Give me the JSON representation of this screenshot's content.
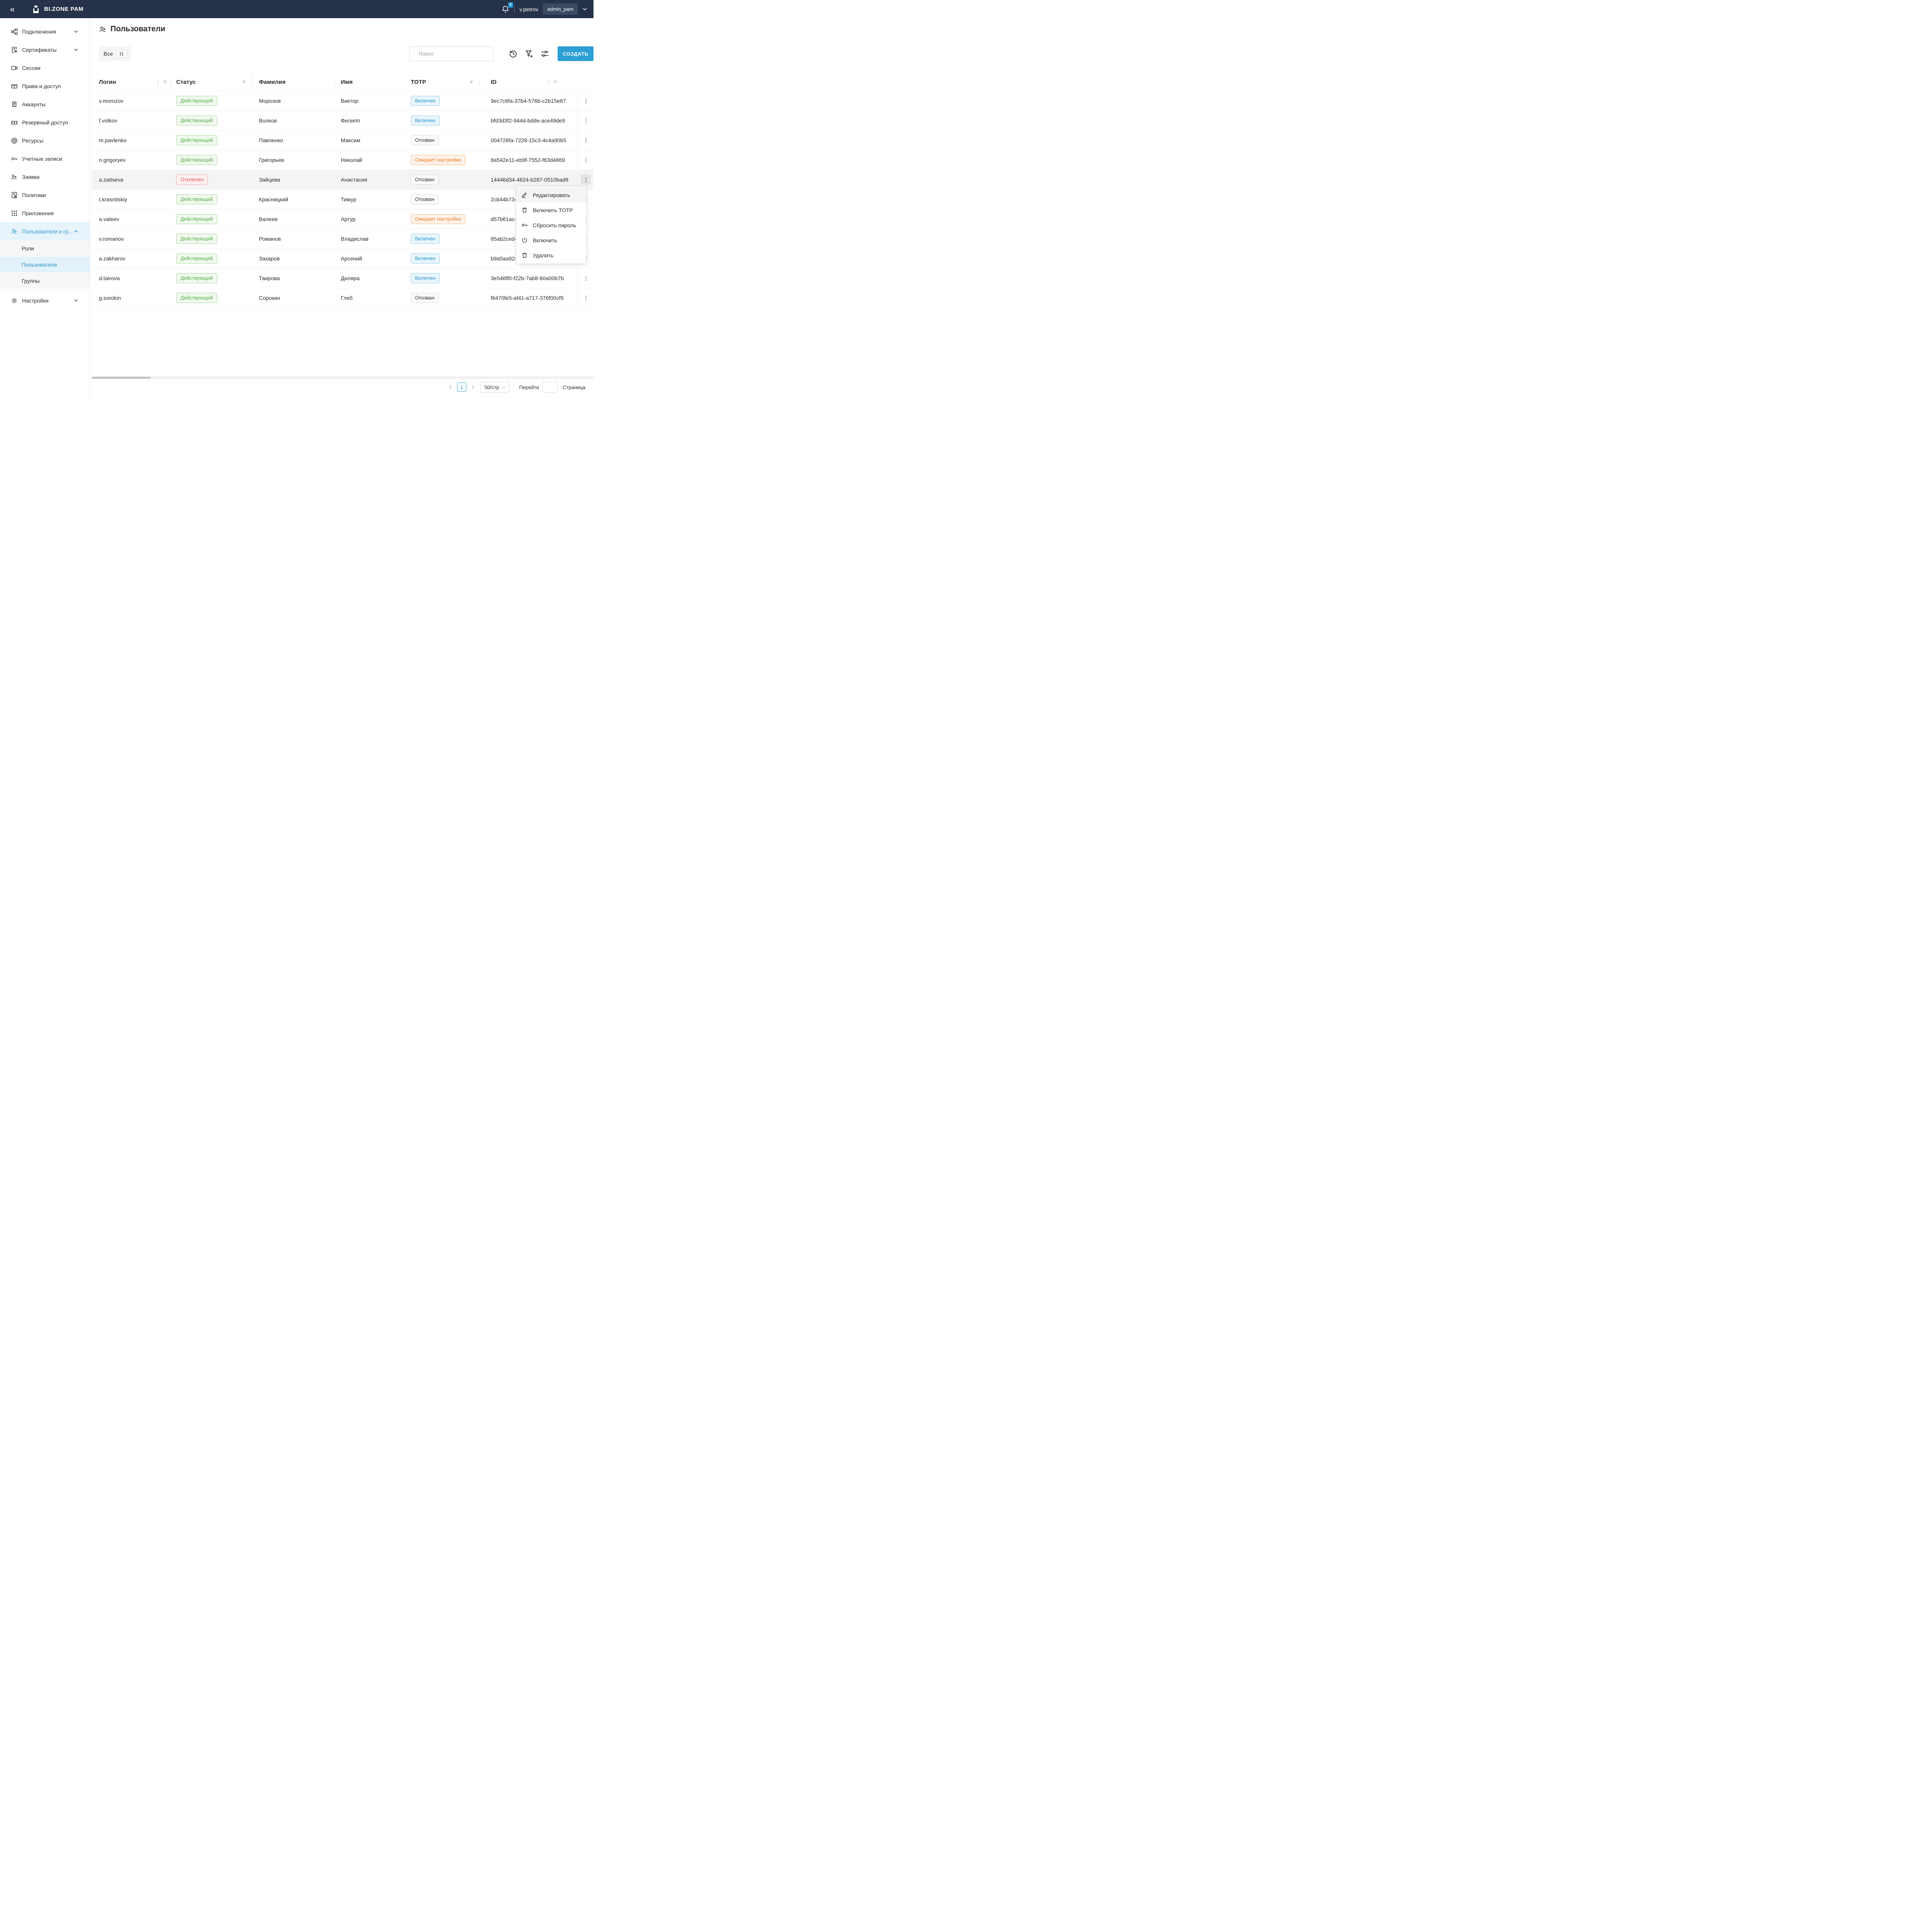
{
  "colors": {
    "topbar_bg": "#263249",
    "accent": "#2b9fd6",
    "accent_text": "#2596cc",
    "sidebar_active_bg": "#e7f4fb",
    "status_green": "#52ae43",
    "status_red": "#e25252",
    "totp_blue": "#2596cc",
    "totp_orange": "#ec7d28"
  },
  "topbar": {
    "brand": "BI.ZONE PAM",
    "notification_count": "2",
    "username": "v.petrov",
    "role": "admin_pam"
  },
  "sidebar": {
    "items": [
      {
        "icon": "connections",
        "label": "Подключения",
        "chevron": "down"
      },
      {
        "icon": "certificates",
        "label": "Сертификаты",
        "chevron": "down"
      },
      {
        "icon": "sessions",
        "label": "Сессии"
      },
      {
        "icon": "rights",
        "label": "Права и доступ"
      },
      {
        "icon": "accounts",
        "label": "Аккаунты"
      },
      {
        "icon": "backup-access",
        "label": "Резервный доступ"
      },
      {
        "icon": "resources",
        "label": "Ресурсы"
      },
      {
        "icon": "credentials",
        "label": "Учетные записи"
      },
      {
        "icon": "requests",
        "label": "Заявки"
      },
      {
        "icon": "policies",
        "label": "Политики"
      },
      {
        "icon": "applications",
        "label": "Приложения"
      },
      {
        "icon": "users-groups",
        "label": "Пользователи и гр...",
        "chevron": "up",
        "active": true
      },
      {
        "label": "Роли",
        "sub": true
      },
      {
        "label": "Пользователи",
        "sub": true,
        "active": true
      },
      {
        "label": "Группы",
        "sub": true
      },
      {
        "icon": "settings",
        "label": "Настройки",
        "chevron": "down",
        "gap": true
      }
    ]
  },
  "page": {
    "title": "Пользователи",
    "filter_chip": {
      "label": "Все",
      "count": "11"
    },
    "search_placeholder": "Поиск",
    "create_button": "СОЗДАТЬ"
  },
  "table": {
    "columns": [
      {
        "label": "Логин",
        "sort": true,
        "filter": true
      },
      {
        "label": "Статус",
        "filter": true
      },
      {
        "label": "Фамилия"
      },
      {
        "label": "Имя"
      },
      {
        "label": "TOTP",
        "filter": true
      },
      {
        "label": "ID",
        "sort": true,
        "filter": true
      }
    ],
    "rows": [
      {
        "login": "v.morozov",
        "status": "Действующий",
        "status_type": "active",
        "last_name": "Морозов",
        "first_name": "Виктор",
        "totp": "Включен",
        "totp_type": "enabled",
        "id": "9ec7c6fa-37b4-576b-c2b15e87"
      },
      {
        "login": "f.volkov",
        "status": "Действующий",
        "status_type": "active",
        "last_name": "Волков",
        "first_name": "Филипп",
        "totp": "Включен",
        "totp_type": "enabled",
        "id": "bfd3d3f2-944d-bdde-ace49de9"
      },
      {
        "login": "m.pavlenko",
        "status": "Действующий",
        "status_type": "active",
        "last_name": "Павленко",
        "first_name": "Максим",
        "totp": "Отозван",
        "totp_type": "revoked",
        "id": "004728fa-7228-15c3-4c4a90b5"
      },
      {
        "login": "n.grigoryev",
        "status": "Действующий",
        "status_type": "active",
        "last_name": "Григорьев",
        "first_name": "Николай",
        "totp": "Ожидает настройки",
        "totp_type": "pending",
        "id": "8a542e11-eb9f-7552-f63d4869"
      },
      {
        "login": "a.zaitseva",
        "status": "Отключен",
        "status_type": "disabled",
        "last_name": "Зайцева",
        "first_name": "Анастасия",
        "totp": "Отозван",
        "totp_type": "revoked",
        "id": "14446d34-4624-b287-0510bad8",
        "selected": true,
        "kebab_active": true
      },
      {
        "login": "t.krasnitskiy",
        "status": "Действующий",
        "status_type": "active",
        "last_name": "Красницкий",
        "first_name": "Тимур",
        "totp": "Отозван",
        "totp_type": "revoked",
        "id": "2cb44b73-"
      },
      {
        "login": "a.valeev",
        "status": "Действующий",
        "status_type": "active",
        "last_name": "Валеев",
        "first_name": "Артур",
        "totp": "Ожидает настройки",
        "totp_type": "pending",
        "id": "d57b61ac-"
      },
      {
        "login": "v.romanov",
        "status": "Действующий",
        "status_type": "active",
        "last_name": "Романов",
        "first_name": "Владислав",
        "totp": "Включен",
        "totp_type": "enabled",
        "id": "85ab2ced-"
      },
      {
        "login": "a.zakharov",
        "status": "Действующий",
        "status_type": "active",
        "last_name": "Захаров",
        "first_name": "Арсений",
        "totp": "Включен",
        "totp_type": "enabled",
        "id": "b9a5aa92-"
      },
      {
        "login": "d.tairova",
        "status": "Действующий",
        "status_type": "active",
        "last_name": "Таирова",
        "first_name": "Диляра",
        "totp": "Включен",
        "totp_type": "enabled",
        "id": "3e546ff0-f22b-7ab8-60a00b7b"
      },
      {
        "login": "g.sorokin",
        "status": "Действующий",
        "status_type": "active",
        "last_name": "Сорокин",
        "first_name": "Глеб",
        "totp": "Отозван",
        "totp_type": "revoked",
        "id": "f6470fe5-af41-a717-376f00cf9"
      }
    ]
  },
  "context_menu": {
    "items": [
      {
        "icon": "pencil",
        "label": "Редактировать",
        "highlighted": true
      },
      {
        "icon": "trash",
        "label": "Включить TOTP"
      },
      {
        "icon": "key",
        "label": "Сбросить пароль"
      },
      {
        "icon": "power",
        "label": "Включить"
      },
      {
        "icon": "trash",
        "label": "Удалить"
      }
    ]
  },
  "pagination": {
    "page": "1",
    "page_size": "50/стр",
    "go_label": "Перейти",
    "go_value": "",
    "page_label": "Страница"
  }
}
